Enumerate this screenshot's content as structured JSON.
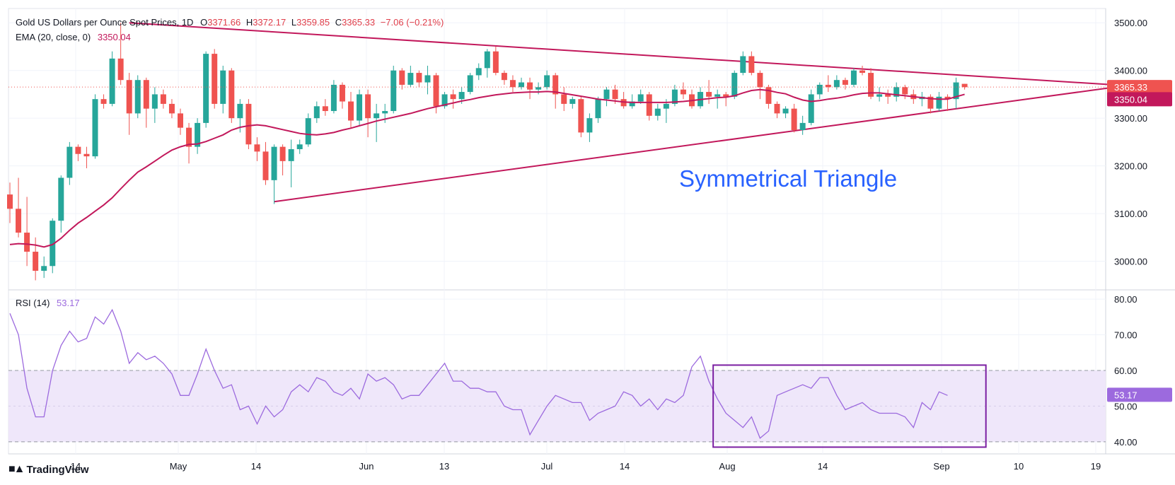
{
  "header": {
    "title": "Gold US Dollars per Ounce Spot Prices, 1D",
    "open_label": "O",
    "open": "3371.66",
    "high_label": "H",
    "high": "3372.17",
    "low_label": "L",
    "low": "3359.85",
    "close_label": "C",
    "close": "3365.33",
    "change": "−7.06 (−0.21%)",
    "ema_label": "EMA (20, close, 0)",
    "ema_value": "3350.04",
    "rsi_label": "RSI (14)",
    "rsi_value": "53.17"
  },
  "annotation": "Symmetrical Triangle",
  "brand": "TradingView",
  "colors": {
    "up": "#26a69a",
    "down": "#ef5350",
    "ema": "#c2185b",
    "trendline": "#c2185b",
    "rsi": "#9c6ade",
    "rsi_band": "#efe7fa",
    "annotation": "#2962ff",
    "box": "#7b1fa2"
  },
  "chart_data": [
    {
      "type": "candlestick",
      "title": "Gold US Dollars per Ounce Spot Prices, 1D",
      "ylim": [
        2940,
        3530
      ],
      "y_ticks": [
        "3500.00",
        "3400.00",
        "3300.00",
        "3200.00",
        "3100.00",
        "3000.00"
      ],
      "x_ticks": [
        "14",
        "May",
        "14",
        "Jun",
        "13",
        "Jul",
        "14",
        "Aug",
        "14",
        "Sep",
        "10",
        "19"
      ],
      "last_price": "3365.33",
      "ema_last": "3350.04",
      "candles": [
        [
          3140,
          3165,
          3080,
          3110
        ],
        [
          3110,
          3175,
          3050,
          3060
        ],
        [
          3060,
          3135,
          2990,
          3020
        ],
        [
          3020,
          3050,
          2960,
          2980
        ],
        [
          2980,
          3010,
          2965,
          2990
        ],
        [
          2990,
          3090,
          2975,
          3085
        ],
        [
          3085,
          3180,
          3060,
          3175
        ],
        [
          3175,
          3250,
          3160,
          3240
        ],
        [
          3240,
          3245,
          3210,
          3225
        ],
        [
          3225,
          3240,
          3195,
          3220
        ],
        [
          3220,
          3350,
          3215,
          3340
        ],
        [
          3340,
          3350,
          3320,
          3330
        ],
        [
          3330,
          3440,
          3325,
          3425
        ],
        [
          3425,
          3500,
          3370,
          3380
        ],
        [
          3380,
          3395,
          3265,
          3310
        ],
        [
          3310,
          3390,
          3300,
          3380
        ],
        [
          3380,
          3385,
          3280,
          3320
        ],
        [
          3320,
          3365,
          3290,
          3350
        ],
        [
          3350,
          3360,
          3320,
          3330
        ],
        [
          3330,
          3340,
          3300,
          3310
        ],
        [
          3310,
          3320,
          3265,
          3280
        ],
        [
          3280,
          3290,
          3205,
          3240
        ],
        [
          3240,
          3300,
          3225,
          3290
        ],
        [
          3290,
          3440,
          3280,
          3435
        ],
        [
          3435,
          3445,
          3320,
          3330
        ],
        [
          3330,
          3410,
          3310,
          3400
        ],
        [
          3400,
          3405,
          3290,
          3300
        ],
        [
          3300,
          3340,
          3270,
          3330
        ],
        [
          3330,
          3340,
          3235,
          3245
        ],
        [
          3245,
          3260,
          3210,
          3230
        ],
        [
          3230,
          3250,
          3160,
          3170
        ],
        [
          3170,
          3245,
          3120,
          3240
        ],
        [
          3240,
          3245,
          3180,
          3210
        ],
        [
          3210,
          3255,
          3155,
          3235
        ],
        [
          3235,
          3255,
          3225,
          3245
        ],
        [
          3245,
          3310,
          3240,
          3300
        ],
        [
          3300,
          3335,
          3290,
          3325
        ],
        [
          3325,
          3340,
          3305,
          3315
        ],
        [
          3315,
          3380,
          3310,
          3370
        ],
        [
          3370,
          3375,
          3320,
          3335
        ],
        [
          3335,
          3355,
          3280,
          3295
        ],
        [
          3295,
          3360,
          3285,
          3350
        ],
        [
          3350,
          3360,
          3260,
          3300
        ],
        [
          3300,
          3330,
          3250,
          3310
        ],
        [
          3310,
          3330,
          3290,
          3315
        ],
        [
          3315,
          3410,
          3310,
          3400
        ],
        [
          3400,
          3405,
          3360,
          3370
        ],
        [
          3370,
          3410,
          3365,
          3395
        ],
        [
          3395,
          3400,
          3365,
          3375
        ],
        [
          3375,
          3410,
          3350,
          3390
        ],
        [
          3390,
          3395,
          3310,
          3325
        ],
        [
          3325,
          3355,
          3320,
          3350
        ],
        [
          3350,
          3360,
          3320,
          3340
        ],
        [
          3340,
          3365,
          3330,
          3355
        ],
        [
          3355,
          3395,
          3350,
          3390
        ],
        [
          3390,
          3415,
          3380,
          3405
        ],
        [
          3405,
          3445,
          3385,
          3440
        ],
        [
          3440,
          3450,
          3390,
          3395
        ],
        [
          3395,
          3400,
          3370,
          3380
        ],
        [
          3380,
          3390,
          3355,
          3365
        ],
        [
          3365,
          3385,
          3360,
          3375
        ],
        [
          3375,
          3385,
          3340,
          3360
        ],
        [
          3360,
          3375,
          3350,
          3365
        ],
        [
          3365,
          3400,
          3360,
          3390
        ],
        [
          3390,
          3395,
          3320,
          3350
        ],
        [
          3350,
          3365,
          3315,
          3330
        ],
        [
          3330,
          3345,
          3320,
          3340
        ],
        [
          3340,
          3345,
          3260,
          3270
        ],
        [
          3270,
          3310,
          3250,
          3300
        ],
        [
          3300,
          3345,
          3290,
          3340
        ],
        [
          3340,
          3365,
          3325,
          3360
        ],
        [
          3360,
          3370,
          3330,
          3340
        ],
        [
          3340,
          3355,
          3320,
          3325
        ],
        [
          3325,
          3350,
          3320,
          3335
        ],
        [
          3335,
          3360,
          3330,
          3350
        ],
        [
          3350,
          3355,
          3295,
          3305
        ],
        [
          3305,
          3330,
          3295,
          3320
        ],
        [
          3320,
          3340,
          3290,
          3330
        ],
        [
          3330,
          3370,
          3325,
          3360
        ],
        [
          3360,
          3375,
          3340,
          3350
        ],
        [
          3350,
          3360,
          3320,
          3325
        ],
        [
          3325,
          3365,
          3320,
          3355
        ],
        [
          3355,
          3380,
          3330,
          3345
        ],
        [
          3345,
          3360,
          3320,
          3350
        ],
        [
          3350,
          3355,
          3325,
          3345
        ],
        [
          3345,
          3400,
          3340,
          3395
        ],
        [
          3395,
          3440,
          3390,
          3430
        ],
        [
          3430,
          3440,
          3390,
          3395
        ],
        [
          3395,
          3400,
          3340,
          3365
        ],
        [
          3365,
          3370,
          3320,
          3330
        ],
        [
          3330,
          3335,
          3300,
          3310
        ],
        [
          3310,
          3325,
          3300,
          3320
        ],
        [
          3320,
          3330,
          3270,
          3275
        ],
        [
          3275,
          3305,
          3265,
          3290
        ],
        [
          3290,
          3360,
          3285,
          3350
        ],
        [
          3350,
          3375,
          3340,
          3370
        ],
        [
          3370,
          3390,
          3355,
          3365
        ],
        [
          3365,
          3390,
          3360,
          3380
        ],
        [
          3380,
          3385,
          3360,
          3370
        ],
        [
          3370,
          3405,
          3365,
          3400
        ],
        [
          3400,
          3410,
          3390,
          3395
        ],
        [
          3395,
          3405,
          3340,
          3345
        ],
        [
          3345,
          3365,
          3335,
          3350
        ],
        [
          3350,
          3360,
          3330,
          3345
        ],
        [
          3345,
          3375,
          3335,
          3365
        ],
        [
          3365,
          3370,
          3340,
          3350
        ],
        [
          3350,
          3360,
          3330,
          3340
        ],
        [
          3340,
          3355,
          3325,
          3345
        ],
        [
          3345,
          3350,
          3310,
          3320
        ],
        [
          3320,
          3355,
          3315,
          3345
        ],
        [
          3345,
          3350,
          3315,
          3340
        ],
        [
          3340,
          3385,
          3320,
          3375
        ],
        [
          3372,
          3372,
          3360,
          3365
        ]
      ],
      "ema": [
        3035,
        3037,
        3036,
        3034,
        3030,
        3035,
        3048,
        3065,
        3080,
        3092,
        3105,
        3118,
        3133,
        3152,
        3170,
        3187,
        3198,
        3210,
        3222,
        3233,
        3240,
        3245,
        3246,
        3251,
        3258,
        3265,
        3275,
        3281,
        3284,
        3286,
        3284,
        3280,
        3276,
        3272,
        3268,
        3266,
        3265,
        3267,
        3270,
        3275,
        3279,
        3284,
        3289,
        3294,
        3298,
        3302,
        3306,
        3310,
        3315,
        3320,
        3324,
        3328,
        3332,
        3336,
        3339,
        3343,
        3346,
        3349,
        3351,
        3353,
        3354,
        3355,
        3355,
        3356,
        3355,
        3352,
        3349,
        3346,
        3343,
        3340,
        3338,
        3336,
        3334,
        3333,
        3333,
        3333,
        3333,
        3333,
        3334,
        3335,
        3337,
        3339,
        3341,
        3343,
        3344,
        3347,
        3353,
        3358,
        3360,
        3358,
        3354,
        3351,
        3344,
        3338,
        3335,
        3337,
        3340,
        3342,
        3345,
        3349,
        3352,
        3353,
        3353,
        3351,
        3349,
        3347,
        3345,
        3343,
        3341,
        3340,
        3340,
        3345,
        3350
      ],
      "trendlines": [
        {
          "name": "upper",
          "from": [
            14,
            3500
          ],
          "to": [
            133,
            3366
          ]
        },
        {
          "name": "lower",
          "from": [
            31,
            3125
          ],
          "to": [
            130,
            3366
          ]
        }
      ]
    },
    {
      "type": "line",
      "title": "RSI (14)",
      "ylim": [
        37,
        82
      ],
      "y_ticks": [
        "80.00",
        "70.00",
        "60.00",
        "50.00",
        "40.00"
      ],
      "bands": [
        40,
        60
      ],
      "last_value": "53.17",
      "values": [
        76,
        70,
        55,
        47,
        47,
        60,
        67,
        71,
        68,
        69,
        75,
        73,
        77,
        71,
        62,
        65,
        63,
        64,
        62,
        59,
        53,
        53,
        59,
        66,
        60,
        55,
        56,
        49,
        50,
        45,
        50,
        47,
        49,
        54,
        56,
        54,
        58,
        57,
        54,
        53,
        55,
        52,
        59,
        57,
        58,
        56,
        52,
        53,
        53,
        56,
        59,
        62,
        57,
        57,
        55,
        55,
        54,
        54,
        50,
        49,
        49,
        42,
        46,
        50,
        53,
        52,
        51,
        51,
        46,
        48,
        49,
        50,
        54,
        53,
        50,
        52,
        49,
        52,
        51,
        53,
        61,
        64,
        57,
        52,
        48,
        46,
        44,
        47,
        41,
        43,
        53,
        54,
        55,
        56,
        55,
        58,
        58,
        53,
        49,
        50,
        51,
        49,
        48,
        48,
        48,
        47,
        44,
        51,
        49,
        54,
        53
      ],
      "highlight_box": {
        "from_index": 83,
        "to_index": 114,
        "y": [
          38.5,
          61.5
        ]
      }
    }
  ]
}
